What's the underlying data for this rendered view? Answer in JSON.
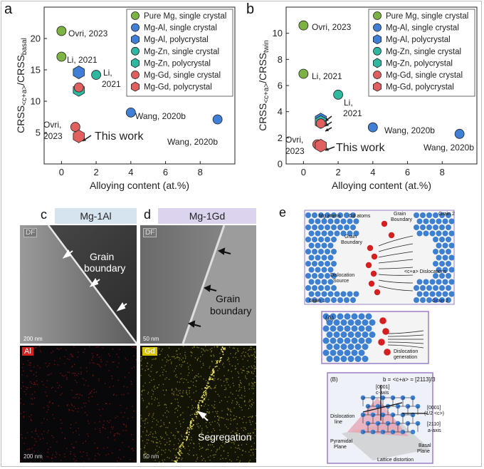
{
  "panels": {
    "a": {
      "letter": "a",
      "ylabel": "CRSS<c+a>/CRSSbasal",
      "xlabel": "Alloying content (at.%)",
      "xticks": [
        "0",
        "2",
        "4",
        "6",
        "8"
      ],
      "yticks": [
        "5",
        "10",
        "15",
        "20"
      ],
      "labels": {
        "ovri": "Ovri, 2023",
        "li": "Li, 2021",
        "li2_a": "Li,",
        "li2_b": "2021",
        "wang1": "Wang, 2020b",
        "wang2": "Wang, 2020b",
        "ovri2_a": "Ovri,",
        "ovri2_b": "2023",
        "this": "This work"
      }
    },
    "b": {
      "letter": "b",
      "ylabel": "CRSS<c+a>/CRSStwin",
      "xlabel": "Alloying content (at.%)",
      "xticks": [
        "0",
        "2",
        "4",
        "6",
        "8"
      ],
      "yticks": [
        "0",
        "2",
        "4",
        "6",
        "8",
        "10"
      ],
      "labels": {
        "ovri": "Ovri, 2023",
        "li": "Li, 2021",
        "li2_a": "Li,",
        "li2_b": "2021",
        "wang1": "Wang, 2020b",
        "wang2": "Wang, 2020b",
        "ovri2_a": "Ovri,",
        "ovri2_b": "2023",
        "this": "This work"
      }
    },
    "c": {
      "letter": "c",
      "header": "Mg-1Al",
      "df": "DF",
      "gb1": "Grain",
      "gb2": "boundary",
      "scale": "200 nm",
      "elem": "Al",
      "scale2": "200 nm"
    },
    "d": {
      "letter": "d",
      "header": "Mg-1Gd",
      "df": "DF",
      "gb1": "Grain",
      "gb2": "boundary",
      "scale": "50 nm",
      "elem": "Gd",
      "scale2": "50 nm",
      "seg": "Segregation"
    },
    "e": {
      "letter": "e",
      "top": {
        "mg": "Mg atoms",
        "gd": "Gd atoms",
        "gb": "Grain",
        "gb2": "Boundary",
        "gbin1": "Grain",
        "gbin2": "Boundary",
        "ds1": "Dislocation",
        "ds2": "Source",
        "ca": "<c+a> Dislocations",
        "g1": "Grain 1",
        "g2": "Grain 2",
        "g2top": "Grain 2"
      },
      "A": {
        "tag": "(A)",
        "t1": "Dislocation",
        "t2": "generation"
      },
      "B": {
        "tag": "(B)",
        "b": "b = <c+a> = [2113]/3",
        "c1": "[0001]",
        "c2": "c-axis",
        "dl1": "Dislocation",
        "dl2": "line",
        "r1": "[0001]",
        "r2": "(1/2 <c>)",
        "r3": "[2110]",
        "r4": "a-axis",
        "pp1": "Pyramidal",
        "pp2": "Plane",
        "bp1": "Basal",
        "bp2": "Plane",
        "ld": "Lattice distortion"
      }
    }
  },
  "legend": [
    "Pure Mg, single crystal",
    "Mg-Al, single crystal",
    "Mg-Al, polycrystal",
    "Mg-Zn, single crystal",
    "Mg-Zn, polycrystal",
    "Mg-Gd, single crystal",
    "Mg-Gd, polycrystal"
  ],
  "colors": {
    "pureMg": "#7cb342",
    "mgAl": "#3f7fd6",
    "mgZn": "#2eb8a0",
    "mgGd": "#e06060",
    "dark": "#222222"
  },
  "chart_data": [
    {
      "type": "scatter",
      "ylabel": "CRSS<c+a>/CRSSbasal",
      "xlabel": "Alloying content (at.%)",
      "xlim": [
        -1,
        10
      ],
      "ylim": [
        0,
        25
      ],
      "series": [
        {
          "name": "Pure Mg, single crystal",
          "points": [
            [
              0,
              21.2
            ],
            [
              0,
              17.1
            ]
          ]
        },
        {
          "name": "Mg-Al, single crystal",
          "points": [
            [
              4,
              8.2
            ],
            [
              9,
              7.1
            ]
          ]
        },
        {
          "name": "Mg-Al, polycrystal",
          "points": [
            [
              1,
              14.6
            ]
          ]
        },
        {
          "name": "Mg-Zn, single crystal",
          "points": [
            [
              2,
              14.2
            ]
          ]
        },
        {
          "name": "Mg-Zn, polycrystal",
          "points": [
            [
              1,
              11.8
            ]
          ]
        },
        {
          "name": "Mg-Gd, single crystal",
          "points": [
            [
              0.8,
              5.9
            ],
            [
              1,
              12.2
            ]
          ]
        },
        {
          "name": "Mg-Gd, polycrystal",
          "points": [
            [
              1,
              4.4
            ]
          ]
        }
      ]
    },
    {
      "type": "scatter",
      "ylabel": "CRSS<c+a>/CRSStwin",
      "xlabel": "Alloying content (at.%)",
      "xlim": [
        -1,
        10
      ],
      "ylim": [
        0,
        12
      ],
      "series": [
        {
          "name": "Pure Mg, single crystal",
          "points": [
            [
              0,
              10.6
            ],
            [
              0,
              6.9
            ]
          ]
        },
        {
          "name": "Mg-Al, single crystal",
          "points": [
            [
              4,
              2.8
            ],
            [
              9,
              2.3
            ]
          ]
        },
        {
          "name": "Mg-Al, polycrystal",
          "points": [
            [
              1,
              3.4
            ]
          ]
        },
        {
          "name": "Mg-Zn, single crystal",
          "points": [
            [
              2,
              5.3
            ]
          ]
        },
        {
          "name": "Mg-Zn, polycrystal",
          "points": [
            [
              1,
              3.2
            ]
          ]
        },
        {
          "name": "Mg-Gd, single crystal",
          "points": [
            [
              0.8,
              1.5
            ],
            [
              1,
              3.1
            ]
          ]
        },
        {
          "name": "Mg-Gd, polycrystal",
          "points": [
            [
              1,
              1.4
            ]
          ]
        }
      ]
    }
  ]
}
